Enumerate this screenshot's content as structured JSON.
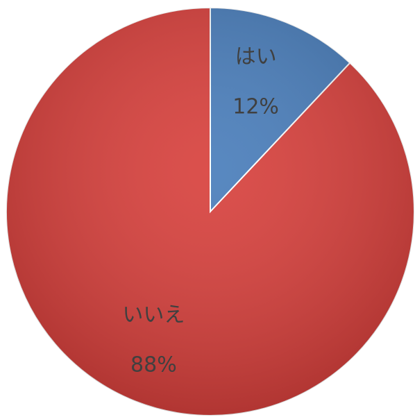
{
  "chart_data": {
    "type": "pie",
    "categories": [
      "はい",
      "いいえ"
    ],
    "values": [
      12,
      88
    ],
    "value_labels": [
      "12%",
      "88%"
    ],
    "colors": [
      "#4a7ebb",
      "#d8413d"
    ]
  }
}
